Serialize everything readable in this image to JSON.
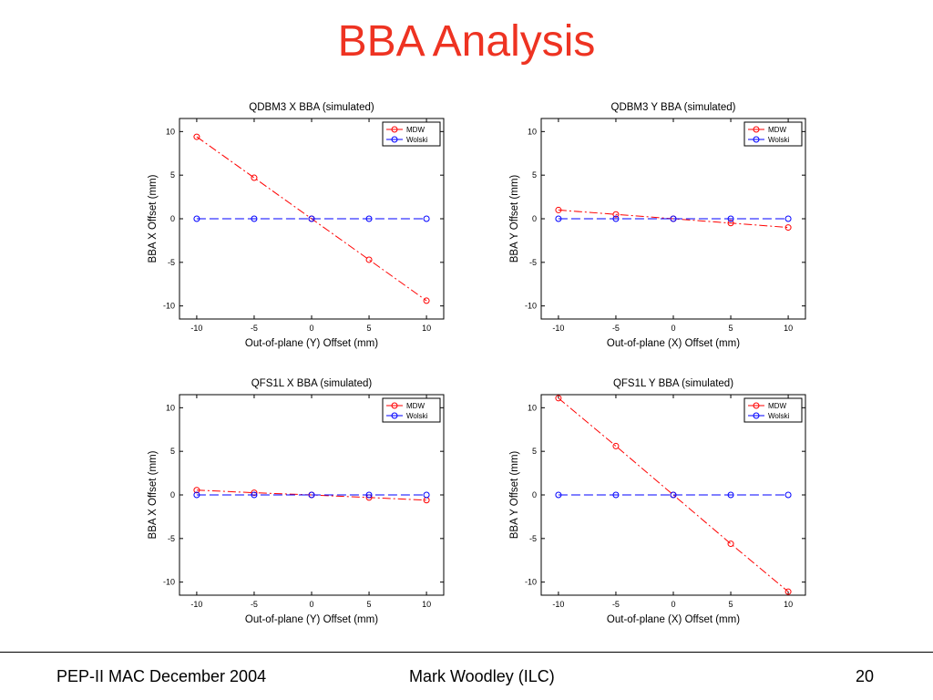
{
  "slide": {
    "title": "BBA Analysis",
    "footer_left": "PEP-II MAC December 2004",
    "footer_center": "Mark Woodley (ILC)",
    "footer_right": "20"
  },
  "colors": {
    "title": "#ee3322",
    "mdw": "#ff0000",
    "wolski": "#0000ff"
  },
  "chart_data": [
    {
      "type": "line",
      "title": "QDBM3 X BBA (simulated)",
      "xlabel": "Out-of-plane (Y) Offset (mm)",
      "ylabel": "BBA X Offset (mm)",
      "xlim": [
        -11.5,
        11.5
      ],
      "ylim": [
        -11.5,
        11.5
      ],
      "xticks": [
        -10,
        -5,
        0,
        5,
        10
      ],
      "yticks": [
        -10,
        -5,
        0,
        5,
        10
      ],
      "x": [
        -10,
        -5,
        0,
        5,
        10
      ],
      "legend": "top-right",
      "series": [
        {
          "name": "MDW",
          "color": "#ff0000",
          "values": [
            9.4,
            4.7,
            0,
            -4.7,
            -9.4
          ]
        },
        {
          "name": "Wolski",
          "color": "#0000ff",
          "values": [
            0,
            0,
            0,
            0,
            0
          ]
        }
      ]
    },
    {
      "type": "line",
      "title": "QDBM3 Y BBA (simulated)",
      "xlabel": "Out-of-plane (X) Offset (mm)",
      "ylabel": "BBA Y Offset (mm)",
      "xlim": [
        -11.5,
        11.5
      ],
      "ylim": [
        -11.5,
        11.5
      ],
      "xticks": [
        -10,
        -5,
        0,
        5,
        10
      ],
      "yticks": [
        -10,
        -5,
        0,
        5,
        10
      ],
      "x": [
        -10,
        -5,
        0,
        5,
        10
      ],
      "legend": "top-right",
      "series": [
        {
          "name": "MDW",
          "color": "#ff0000",
          "values": [
            1.0,
            0.5,
            0,
            -0.5,
            -1.0
          ]
        },
        {
          "name": "Wolski",
          "color": "#0000ff",
          "values": [
            0,
            0,
            0,
            0,
            0
          ]
        }
      ]
    },
    {
      "type": "line",
      "title": "QFS1L X BBA (simulated)",
      "xlabel": "Out-of-plane (Y) Offset (mm)",
      "ylabel": "BBA X Offset (mm)",
      "xlim": [
        -11.5,
        11.5
      ],
      "ylim": [
        -11.5,
        11.5
      ],
      "xticks": [
        -10,
        -5,
        0,
        5,
        10
      ],
      "yticks": [
        -10,
        -5,
        0,
        5,
        10
      ],
      "x": [
        -10,
        -5,
        0,
        5,
        10
      ],
      "legend": "top-right",
      "series": [
        {
          "name": "MDW",
          "color": "#ff0000",
          "values": [
            0.55,
            0.25,
            0,
            -0.3,
            -0.6
          ]
        },
        {
          "name": "Wolski",
          "color": "#0000ff",
          "values": [
            0,
            0,
            0,
            0,
            0
          ]
        }
      ]
    },
    {
      "type": "line",
      "title": "QFS1L Y BBA (simulated)",
      "xlabel": "Out-of-plane (X) Offset (mm)",
      "ylabel": "BBA Y Offset (mm)",
      "xlim": [
        -11.5,
        11.5
      ],
      "ylim": [
        -11.5,
        11.5
      ],
      "xticks": [
        -10,
        -5,
        0,
        5,
        10
      ],
      "yticks": [
        -10,
        -5,
        0,
        5,
        10
      ],
      "x": [
        -10,
        -5,
        0,
        5,
        10
      ],
      "legend": "top-right",
      "series": [
        {
          "name": "MDW",
          "color": "#ff0000",
          "values": [
            11.1,
            5.6,
            0,
            -5.6,
            -11.1
          ]
        },
        {
          "name": "Wolski",
          "color": "#0000ff",
          "values": [
            0,
            0,
            0,
            0,
            0
          ]
        }
      ]
    }
  ]
}
